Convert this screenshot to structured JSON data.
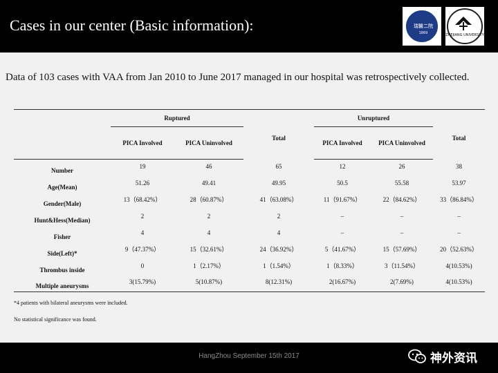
{
  "slide": {
    "title": "Cases in our center (Basic information):",
    "intro": "Data of 103 cases with VAA from Jan 2010 to June 2017 managed in our hospital was retrospectively collected."
  },
  "logos": {
    "left_seal_text": "瑞醫二院",
    "left_seal_year": "1869",
    "right_caption": "ZHEJIANG UNIVERSITY"
  },
  "table": {
    "groups": {
      "ruptured": "Ruptured",
      "unruptured": "Unruptured",
      "total": "Total"
    },
    "subheads": [
      "PICA Involved",
      "PICA Uninvolved",
      "PICA Involved",
      "PICA Uninvolved"
    ],
    "rows": [
      {
        "label": "Number",
        "values": [
          "19",
          "46",
          "65",
          "12",
          "26",
          "38"
        ]
      },
      {
        "label": "Age(Mean)",
        "values": [
          "51.26",
          "49.41",
          "49.95",
          "50.5",
          "55.58",
          "53.97"
        ]
      },
      {
        "label": "Gender(Male)",
        "values": [
          "13（68.42%）",
          "28（60.87%）",
          "41（63.08%）",
          "11（91.67%）",
          "22（84.62%）",
          "33（86.84%）"
        ]
      },
      {
        "label": "Hunt&Hess(Median)",
        "values": [
          "2",
          "2",
          "2",
          "–",
          "–",
          "–"
        ]
      },
      {
        "label": "Fisher",
        "values": [
          "4",
          "4",
          "4",
          "–",
          "–",
          "–"
        ]
      },
      {
        "label": "Side(Left)*",
        "values": [
          "9（47.37%）",
          "15（32.61%）",
          "24（36.92%）",
          "5（41.67%）",
          "15（57.69%）",
          "20（52.63%）"
        ]
      },
      {
        "label": "Thrombus inside",
        "values": [
          "0",
          "1（2.17%）",
          "1（1.54%）",
          "1（8.33%）",
          "3（11.54%）",
          "4(10.53%)"
        ]
      },
      {
        "label": "Multiple aneurysms",
        "values": [
          "3(15.79%)",
          "5(10.87%)",
          "8(12.31%)",
          "2(16.67%)",
          "2(7.69%)",
          "4(10.53%)"
        ]
      }
    ]
  },
  "footnotes": {
    "note1": "*4 patients with bilateral aneurysms were included.",
    "note2": "No statistical significance was found."
  },
  "footer": {
    "date": "HangZhou September 15th 2017",
    "wechat_label": "神外资讯"
  },
  "colors": {
    "header_bg": "#000000",
    "slide_bg": "#f1f1f1",
    "seal_blue": "#1d3b86"
  },
  "icons": [
    "wechat-icon",
    "hospital-seal-logo",
    "zhejiang-university-logo"
  ]
}
